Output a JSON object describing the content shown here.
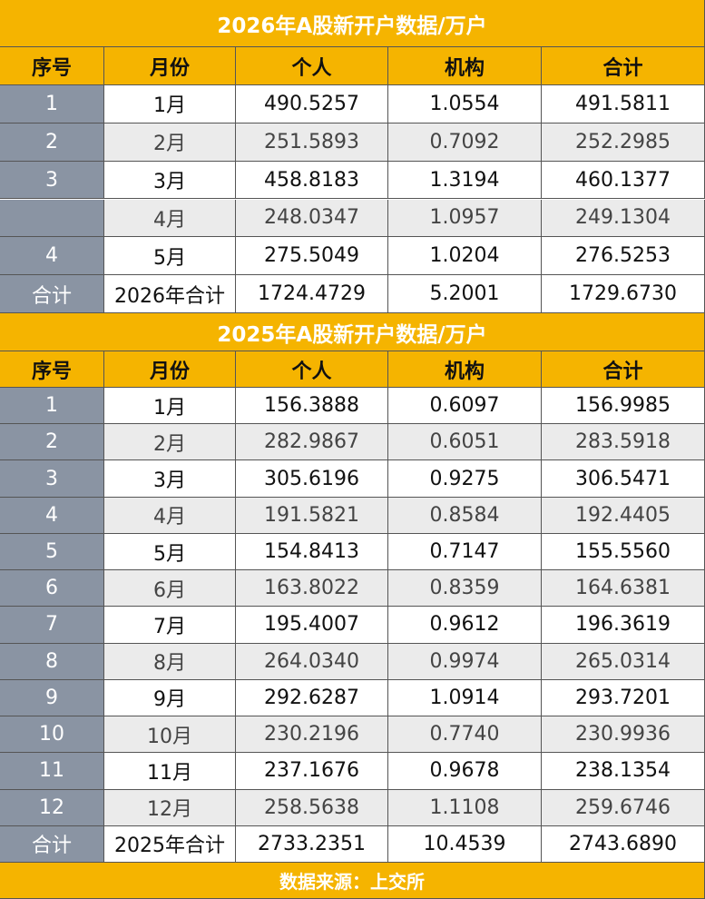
{
  "tables": [
    {
      "title": "2026年A股新开户数据/万户",
      "headers": [
        "序号",
        "月份",
        "个人",
        "机构",
        "合计"
      ],
      "rows": [
        [
          "1",
          "1月",
          "490.5257",
          "1.0554",
          "491.5811"
        ],
        [
          "2",
          "2月",
          "251.5893",
          "0.7092",
          "252.2985"
        ],
        [
          "3",
          "3月",
          "458.8183",
          "1.3194",
          "460.1377"
        ],
        [
          null,
          "4月",
          "248.0347",
          "1.0957",
          "249.1304"
        ],
        [
          "4",
          "5月",
          "275.5049",
          "1.0204",
          "276.5253"
        ],
        [
          "合计",
          "2026年合计",
          "1724.4729",
          "5.2001",
          "1729.6730"
        ]
      ]
    },
    {
      "title": "2025年A股新开户数据/万户",
      "headers": [
        "序号",
        "月份",
        "个人",
        "机构",
        "合计"
      ],
      "rows": [
        [
          "1",
          "1月",
          "156.3888",
          "0.6097",
          "156.9985"
        ],
        [
          "2",
          "2月",
          "282.9867",
          "0.6051",
          "283.5918"
        ],
        [
          "3",
          "3月",
          "305.6196",
          "0.9275",
          "306.5471"
        ],
        [
          "4",
          "4月",
          "191.5821",
          "0.8584",
          "192.4405"
        ],
        [
          "5",
          "5月",
          "154.8413",
          "0.7147",
          "155.5560"
        ],
        [
          "6",
          "6月",
          "163.8022",
          "0.8359",
          "164.6381"
        ],
        [
          "7",
          "7月",
          "195.4007",
          "0.9612",
          "196.3619"
        ],
        [
          "8",
          "8月",
          "264.0340",
          "0.9974",
          "265.0314"
        ],
        [
          "9",
          "9月",
          "292.6287",
          "1.0914",
          "293.7201"
        ],
        [
          "10",
          "10月",
          "230.2196",
          "0.7740",
          "230.9936"
        ],
        [
          "11",
          "11月",
          "237.1676",
          "0.9678",
          "238.1354"
        ],
        [
          "12",
          "12月",
          "258.5638",
          "1.1108",
          "259.6746"
        ],
        [
          "合计",
          "2025年合计",
          "2733.2351",
          "10.4539",
          "2743.6890"
        ]
      ]
    }
  ],
  "footer": "数据来源：上交所"
}
